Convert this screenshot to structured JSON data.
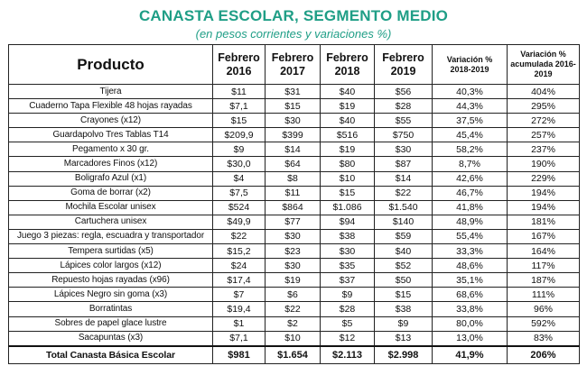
{
  "title": "CANASTA ESCOLAR, SEGMENTO MEDIO",
  "subtitle": "(en pesos corrientes y variaciones %)",
  "columns": {
    "product": "Producto",
    "y2016_line1": "Febrero",
    "y2016_line2": "2016",
    "y2017_line1": "Febrero",
    "y2017_line2": "2017",
    "y2018_line1": "Febrero",
    "y2018_line2": "2018",
    "y2019_line1": "Febrero",
    "y2019_line2": "2019",
    "var_line1": "Variación %",
    "var_line2": "2018-2019",
    "acc_line1": "Variación %",
    "acc_line2": "acumulada 2016-",
    "acc_line3": "2019"
  },
  "rows": [
    {
      "product": "Tijera",
      "y2016": "$11",
      "y2017": "$31",
      "y2018": "$40",
      "y2019": "$56",
      "var": "40,3%",
      "acc": "404%"
    },
    {
      "product": "Cuaderno Tapa Flexible 48 hojas rayadas",
      "y2016": "$7,1",
      "y2017": "$15",
      "y2018": "$19",
      "y2019": "$28",
      "var": "44,3%",
      "acc": "295%"
    },
    {
      "product": "Crayones (x12)",
      "y2016": "$15",
      "y2017": "$30",
      "y2018": "$40",
      "y2019": "$55",
      "var": "37,5%",
      "acc": "272%"
    },
    {
      "product": "Guardapolvo Tres Tablas T14",
      "y2016": "$209,9",
      "y2017": "$399",
      "y2018": "$516",
      "y2019": "$750",
      "var": "45,4%",
      "acc": "257%"
    },
    {
      "product": "Pegamento x 30 gr.",
      "y2016": "$9",
      "y2017": "$14",
      "y2018": "$19",
      "y2019": "$30",
      "var": "58,2%",
      "acc": "237%"
    },
    {
      "product": "Marcadores Finos (x12)",
      "y2016": "$30,0",
      "y2017": "$64",
      "y2018": "$80",
      "y2019": "$87",
      "var": "8,7%",
      "acc": "190%"
    },
    {
      "product": "Boligrafo Azul (x1)",
      "y2016": "$4",
      "y2017": "$8",
      "y2018": "$10",
      "y2019": "$14",
      "var": "42,6%",
      "acc": "229%"
    },
    {
      "product": "Goma de borrar (x2)",
      "y2016": "$7,5",
      "y2017": "$11",
      "y2018": "$15",
      "y2019": "$22",
      "var": "46,7%",
      "acc": "194%"
    },
    {
      "product": "Mochila Escolar unisex",
      "y2016": "$524",
      "y2017": "$864",
      "y2018": "$1.086",
      "y2019": "$1.540",
      "var": "41,8%",
      "acc": "194%"
    },
    {
      "product": "Cartuchera unisex",
      "y2016": "$49,9",
      "y2017": "$77",
      "y2018": "$94",
      "y2019": "$140",
      "var": "48,9%",
      "acc": "181%"
    },
    {
      "product": "Juego 3 piezas: regla, escuadra y transportador",
      "y2016": "$22",
      "y2017": "$30",
      "y2018": "$38",
      "y2019": "$59",
      "var": "55,4%",
      "acc": "167%"
    },
    {
      "product": "Tempera surtidas (x5)",
      "y2016": "$15,2",
      "y2017": "$23",
      "y2018": "$30",
      "y2019": "$40",
      "var": "33,3%",
      "acc": "164%"
    },
    {
      "product": "Lápices color largos (x12)",
      "y2016": "$24",
      "y2017": "$30",
      "y2018": "$35",
      "y2019": "$52",
      "var": "48,6%",
      "acc": "117%"
    },
    {
      "product": "Repuesto hojas rayadas (x96)",
      "y2016": "$17,4",
      "y2017": "$19",
      "y2018": "$37",
      "y2019": "$50",
      "var": "35,1%",
      "acc": "187%"
    },
    {
      "product": "Lápices Negro sin goma (x3)",
      "y2016": "$7",
      "y2017": "$6",
      "y2018": "$9",
      "y2019": "$15",
      "var": "68,6%",
      "acc": "111%"
    },
    {
      "product": "Borratintas",
      "y2016": "$19,4",
      "y2017": "$22",
      "y2018": "$28",
      "y2019": "$38",
      "var": "33,8%",
      "acc": "96%"
    },
    {
      "product": "Sobres de papel glace lustre",
      "y2016": "$1",
      "y2017": "$2",
      "y2018": "$5",
      "y2019": "$9",
      "var": "80,0%",
      "acc": "592%"
    },
    {
      "product": "Sacapuntas (x3)",
      "y2016": "$7,1",
      "y2017": "$10",
      "y2018": "$12",
      "y2019": "$13",
      "var": "13,0%",
      "acc": "83%"
    }
  ],
  "total": {
    "product": "Total Canasta Básica Escolar",
    "y2016": "$981",
    "y2017": "$1.654",
    "y2018": "$2.113",
    "y2019": "$2.998",
    "var": "41,9%",
    "acc": "206%"
  }
}
